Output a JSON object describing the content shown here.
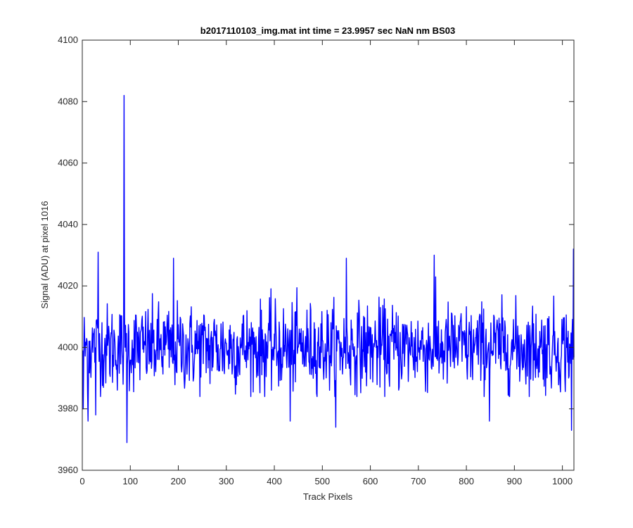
{
  "chart_data": {
    "type": "line",
    "title": "b2017110103_img.mat int time = 23.9957 sec  NaN nm BS03",
    "xlabel": "Track Pixels",
    "ylabel": "Signal (ADU) at pixel 1016",
    "xlim": [
      0,
      1024
    ],
    "ylim": [
      3960,
      4100
    ],
    "x_ticks": [
      0,
      100,
      200,
      300,
      400,
      500,
      600,
      700,
      800,
      900,
      1000
    ],
    "y_ticks": [
      3960,
      3980,
      4000,
      4020,
      4040,
      4060,
      4080,
      4100
    ],
    "grid": false,
    "box": true,
    "series": [
      {
        "color": "#0000ff",
        "x_start": 1,
        "x_step": 1,
        "length": 1024,
        "baseline": 4000,
        "noise_std": 7,
        "notable_points": [
          {
            "x": 1,
            "y": 3999
          },
          {
            "x": 2,
            "y": 3980
          },
          {
            "x": 12,
            "y": 3976
          },
          {
            "x": 28,
            "y": 3978
          },
          {
            "x": 33,
            "y": 4031
          },
          {
            "x": 87,
            "y": 4082
          },
          {
            "x": 93,
            "y": 3969
          },
          {
            "x": 190,
            "y": 4029
          },
          {
            "x": 433,
            "y": 3976
          },
          {
            "x": 528,
            "y": 3974
          },
          {
            "x": 550,
            "y": 4029
          },
          {
            "x": 733,
            "y": 4030
          },
          {
            "x": 848,
            "y": 3976
          },
          {
            "x": 1019,
            "y": 3973
          },
          {
            "x": 1023,
            "y": 4032
          }
        ]
      }
    ]
  }
}
